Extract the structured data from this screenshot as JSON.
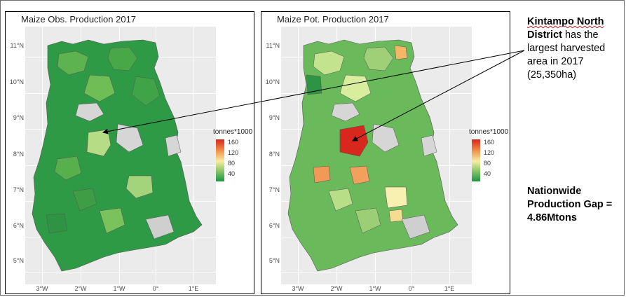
{
  "panels": {
    "observed": {
      "title": "Maize Obs. Production 2017",
      "legend": {
        "title": "tonnes*1000",
        "ticks": [
          "160",
          "120",
          "80",
          "40"
        ]
      }
    },
    "potential": {
      "title": "Maize Pot. Production 2017",
      "legend": {
        "title": "tonnes*1000",
        "ticks": [
          "160",
          "120",
          "80",
          "40"
        ]
      }
    }
  },
  "axes": {
    "y_ticks": [
      "11°N",
      "10°N",
      "9°N",
      "8°N",
      "7°N",
      "6°N",
      "5°N"
    ],
    "x_ticks": [
      "3°W",
      "2°W",
      "1°W",
      "0°",
      "1°E"
    ]
  },
  "colors": {
    "high": "#d7261e",
    "mid_high": "#f18a44",
    "mid": "#f6eda0",
    "low": "#8cc668",
    "lowest": "#1a9641",
    "no_data": "#cfcfcf",
    "plot_background": "#ebebeb"
  },
  "annotation": {
    "district_name_line1": "Kintampo North",
    "district_name_line2": "District",
    "rest_line2": " has the",
    "line3": "largest harvested",
    "line4": "area in 2017",
    "line5": "(25,350ha)"
  },
  "gap": {
    "line1": "Nationwide",
    "line2": "Production Gap =",
    "line3": "4.86Mtons"
  }
}
